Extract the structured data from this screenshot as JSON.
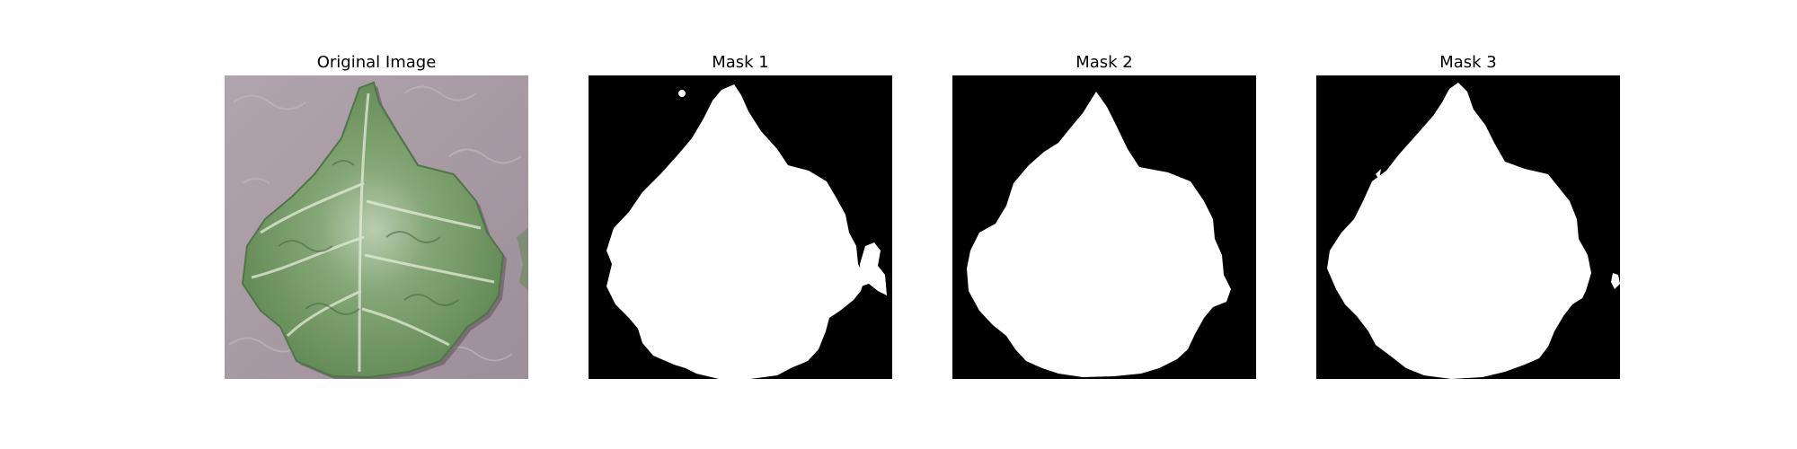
{
  "panels": [
    {
      "title": "Original Image"
    },
    {
      "title": "Mask 1"
    },
    {
      "title": "Mask 2"
    },
    {
      "title": "Mask 3"
    }
  ],
  "colors": {
    "background": "#ffffff",
    "mask_background": "#000000",
    "mask_foreground": "#ffffff",
    "photo_background": "#a898a2",
    "leaf_green": "#6f9a62"
  }
}
